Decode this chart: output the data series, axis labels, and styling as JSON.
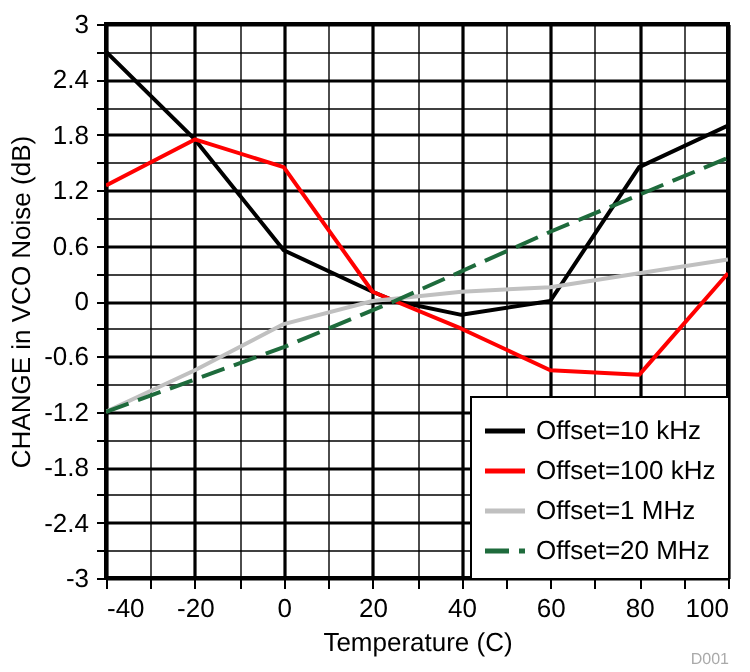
{
  "chart_data": {
    "type": "line",
    "xlabel": "Temperature (C)",
    "ylabel": "CHANGE in VCO Noise (dB)",
    "annotations": [
      "D001"
    ],
    "xlim": [
      -40,
      100
    ],
    "ylim": [
      -3,
      3
    ],
    "xticks": [
      -40,
      {
        "value": -30,
        "label": null
      },
      -20,
      {
        "value": -10,
        "label": null
      },
      0,
      {
        "value": 10,
        "label": null
      },
      20,
      {
        "value": 30,
        "label": null
      },
      40,
      {
        "value": 50,
        "label": null
      },
      60,
      {
        "value": 70,
        "label": null
      },
      80,
      {
        "value": 90,
        "label": null
      },
      100
    ],
    "yticks": [
      -3,
      {
        "value": -2.7,
        "label": null
      },
      -2.4,
      {
        "value": -2.1,
        "label": null
      },
      -1.8,
      {
        "value": -1.5,
        "label": null
      },
      -1.2,
      {
        "value": -0.9,
        "label": null
      },
      -0.6,
      {
        "value": -0.3,
        "label": null
      },
      0,
      {
        "value": 0.3,
        "label": null
      },
      0.6,
      {
        "value": 0.9,
        "label": null
      },
      1.2,
      {
        "value": 1.5,
        "label": null
      },
      1.8,
      {
        "value": 2.1,
        "label": null
      },
      2.4,
      {
        "value": 2.7,
        "label": null
      },
      3
    ],
    "grid": true,
    "legend": "bottom right",
    "series": [
      {
        "name": "Offset=10 kHz",
        "color": "#000000",
        "x": [
          -40,
          -20,
          0,
          20,
          25,
          40,
          60,
          80,
          100
        ],
        "values": [
          2.7,
          1.75,
          0.55,
          0.1,
          0,
          -0.15,
          0,
          1.45,
          1.9
        ]
      },
      {
        "name": "Offset=100 kHz",
        "color": "#ff0000",
        "x": [
          -40,
          -20,
          0,
          20,
          25,
          40,
          60,
          80,
          100
        ],
        "values": [
          1.25,
          1.75,
          1.45,
          0.1,
          0,
          -0.3,
          -0.75,
          -0.8,
          0.3
        ]
      },
      {
        "name": "Offset=1 MHz",
        "color": "#c0c0c0",
        "x": [
          -40,
          -20,
          0,
          20,
          40,
          60,
          80,
          100
        ],
        "values": [
          -1.2,
          -0.75,
          -0.25,
          0,
          0.1,
          0.15,
          0.3,
          0.45
        ]
      },
      {
        "name": "Offset=20 MHz",
        "color": "#1e6b3c",
        "line_style": "dashed",
        "x": [
          -40,
          0,
          25,
          60,
          100
        ],
        "values": [
          -1.2,
          -0.5,
          0,
          0.75,
          1.55
        ]
      }
    ]
  }
}
